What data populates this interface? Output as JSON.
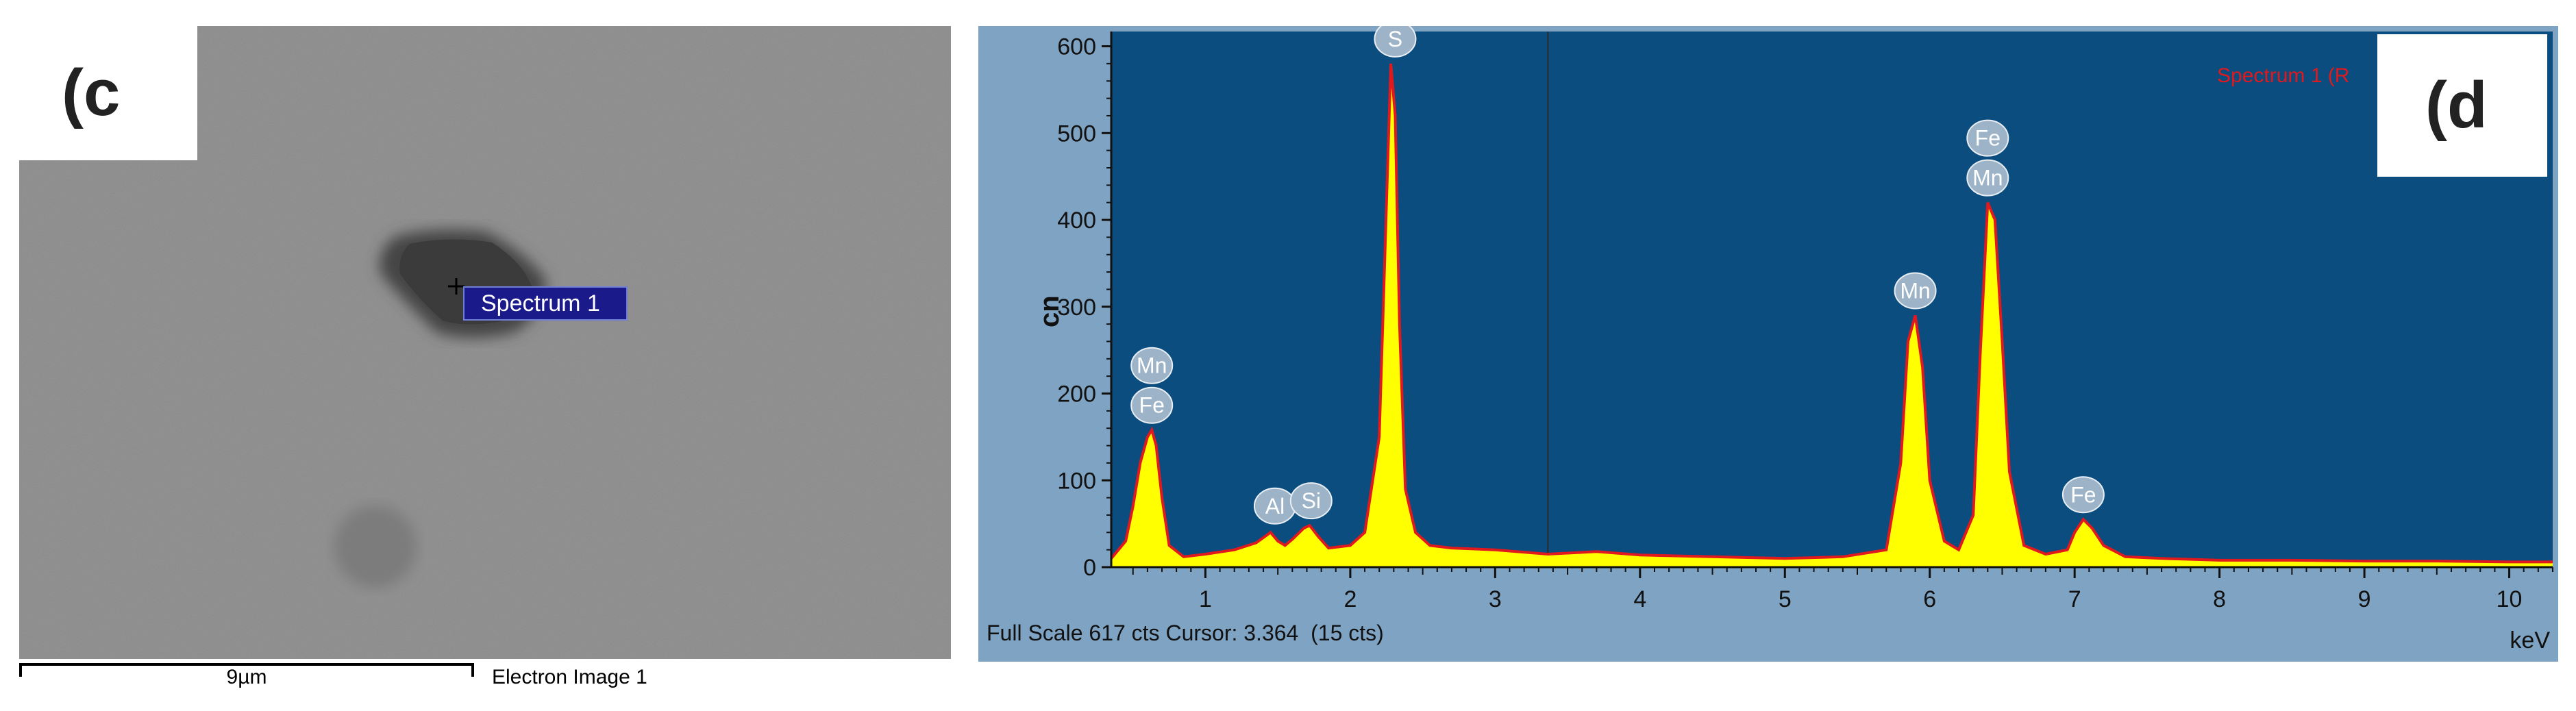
{
  "panels": {
    "sem": {
      "panel_label": "(c",
      "marker_label": "Spectrum 1",
      "scale_bar_label": "9µm",
      "caption": "Electron Image 1"
    },
    "eds": {
      "panel_label": "(d",
      "legend_text": "Spectrum 1 (R",
      "status_text": "Full Scale 617 cts Cursor: 3.364  (15 cts)"
    }
  },
  "colors": {
    "sem_background": "#8a8a8a",
    "plot_background": "#0a4d7e",
    "spectrum_fill": "#ffff00",
    "spectrum_outline": "#e0191f",
    "peak_label_bubble": "#9db3c8"
  },
  "chart_data": {
    "type": "area",
    "title": "",
    "xlabel": "",
    "x_unit_label": "keV",
    "ylabel": "cn",
    "xlim": [
      0.35,
      10.3
    ],
    "ylim": [
      0,
      617
    ],
    "x_ticks": [
      "1",
      "2",
      "3",
      "4",
      "5",
      "6",
      "7",
      "8",
      "9",
      "10"
    ],
    "y_ticks": [
      "0",
      "100",
      "200",
      "300",
      "400",
      "500",
      "600"
    ],
    "cursor_kev": 3.364,
    "cursor_counts": 15,
    "full_scale_cts": 617,
    "series": [
      {
        "name": "Spectrum 1",
        "x": [
          0.35,
          0.45,
          0.5,
          0.55,
          0.6,
          0.63,
          0.66,
          0.7,
          0.75,
          0.85,
          1.0,
          1.2,
          1.35,
          1.45,
          1.5,
          1.55,
          1.6,
          1.68,
          1.72,
          1.78,
          1.85,
          2.0,
          2.1,
          2.2,
          2.25,
          2.28,
          2.31,
          2.34,
          2.38,
          2.45,
          2.55,
          2.7,
          3.0,
          3.364,
          3.7,
          4.0,
          4.5,
          5.0,
          5.4,
          5.7,
          5.8,
          5.85,
          5.9,
          5.95,
          6.0,
          6.1,
          6.2,
          6.3,
          6.35,
          6.4,
          6.45,
          6.5,
          6.55,
          6.65,
          6.8,
          6.95,
          7.0,
          7.06,
          7.12,
          7.2,
          7.35,
          7.6,
          8.0,
          8.5,
          9.0,
          9.5,
          10.0,
          10.3
        ],
        "y": [
          10,
          30,
          70,
          120,
          150,
          158,
          140,
          80,
          25,
          12,
          15,
          20,
          28,
          40,
          30,
          25,
          32,
          45,
          48,
          35,
          22,
          25,
          40,
          150,
          420,
          580,
          520,
          280,
          90,
          40,
          25,
          22,
          20,
          15,
          18,
          14,
          12,
          10,
          12,
          20,
          120,
          260,
          290,
          230,
          100,
          30,
          20,
          60,
          250,
          420,
          400,
          260,
          110,
          25,
          15,
          20,
          40,
          55,
          45,
          25,
          12,
          10,
          8,
          8,
          7,
          7,
          6,
          6
        ]
      }
    ],
    "peak_labels": [
      {
        "text": "S",
        "x": 2.31,
        "y": 580
      },
      {
        "text": "Fe",
        "x": 0.63,
        "y": 158
      },
      {
        "text": "Mn",
        "x": 0.63,
        "y": 158,
        "stack": 1
      },
      {
        "text": "Al",
        "x": 1.48,
        "y": 42
      },
      {
        "text": "Si",
        "x": 1.73,
        "y": 48
      },
      {
        "text": "Mn",
        "x": 5.9,
        "y": 290
      },
      {
        "text": "Mn",
        "x": 6.4,
        "y": 420
      },
      {
        "text": "Fe",
        "x": 6.4,
        "y": 420,
        "stack": 1
      },
      {
        "text": "Fe",
        "x": 7.06,
        "y": 55
      }
    ]
  }
}
